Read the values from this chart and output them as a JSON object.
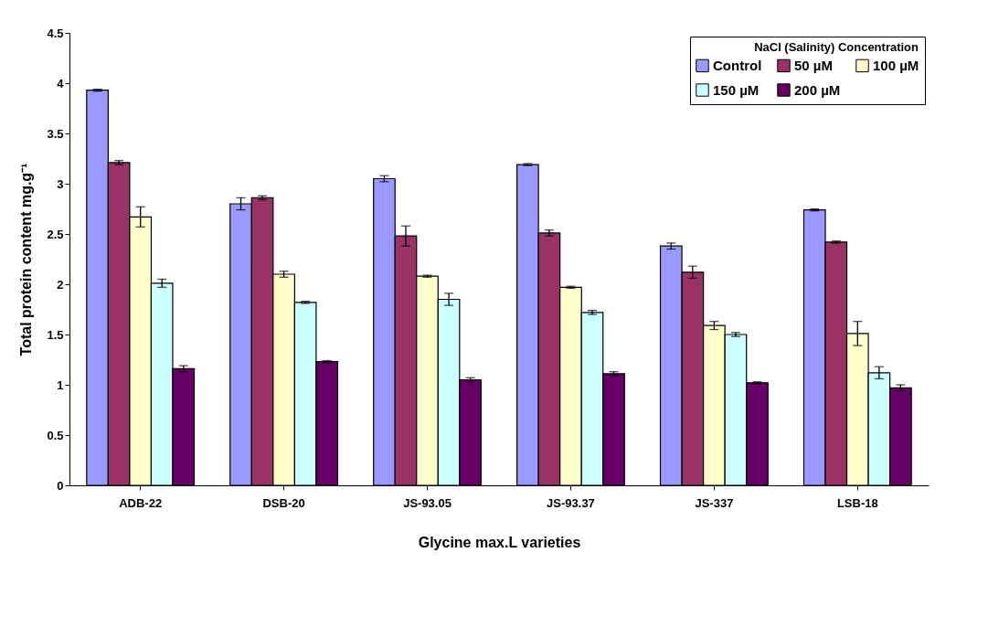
{
  "chart_data": {
    "type": "bar",
    "xlabel": "Glycine max.L varieties",
    "ylabel": "Total protein content mg.g⁻¹",
    "legend_title": "NaCl (Salinity) Concentration",
    "categories": [
      "ADB-22",
      "DSB-20",
      "JS-93.05",
      "JS-93.37",
      "JS-337",
      "LSB-18"
    ],
    "series": [
      {
        "name": "Control",
        "color": "#9999ff",
        "values": [
          3.93,
          2.8,
          3.05,
          3.19,
          2.38,
          2.74
        ],
        "errors": [
          0.01,
          0.06,
          0.03,
          0.01,
          0.03,
          0.01
        ]
      },
      {
        "name": "50 µM",
        "color": "#993366",
        "values": [
          3.21,
          2.86,
          2.48,
          2.51,
          2.12,
          2.42
        ],
        "errors": [
          0.02,
          0.02,
          0.1,
          0.03,
          0.06,
          0.01
        ]
      },
      {
        "name": "100 µM",
        "color": "#ffffcc",
        "values": [
          2.67,
          2.1,
          2.08,
          1.97,
          1.59,
          1.51
        ],
        "errors": [
          0.1,
          0.03,
          0.01,
          0.01,
          0.04,
          0.12
        ]
      },
      {
        "name": "150 µM",
        "color": "#ccffff",
        "values": [
          2.01,
          1.82,
          1.85,
          1.72,
          1.5,
          1.12
        ],
        "errors": [
          0.04,
          0.01,
          0.06,
          0.02,
          0.02,
          0.06
        ]
      },
      {
        "name": "200 µM",
        "color": "#660066",
        "values": [
          1.16,
          1.23,
          1.05,
          1.11,
          1.02,
          0.97
        ],
        "errors": [
          0.03,
          0.01,
          0.02,
          0.02,
          0.01,
          0.03
        ]
      }
    ],
    "ylim": [
      0,
      4.5
    ],
    "yticks": [
      0,
      0.5,
      1,
      1.5,
      2,
      2.5,
      3,
      3.5,
      4,
      4.5
    ],
    "grid": false,
    "legend": "top right"
  }
}
